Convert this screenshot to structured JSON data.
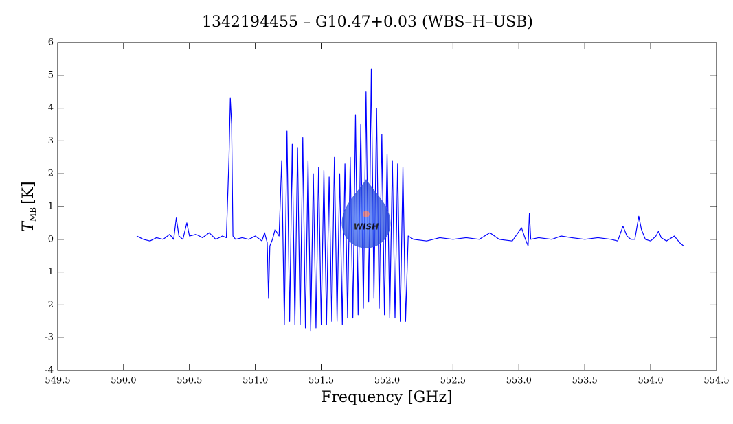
{
  "chart_data": {
    "type": "line",
    "title": "1342194455 – G10.47+0.03 (WBS–H–USB)",
    "x_label": "Frequency [GHz]",
    "y_label": {
      "symbol": "T",
      "subscript": "MB",
      "unit": "[K]"
    },
    "watermark": "WISH",
    "xlim": [
      549.5,
      554.5
    ],
    "xticks": [
      549.5,
      {
        "value": 550,
        "label": "550.0"
      },
      550.5,
      {
        "value": 551,
        "label": "551.0"
      },
      551.5,
      {
        "value": 552,
        "label": "552.0"
      },
      552.5,
      {
        "value": 553,
        "label": "553.0"
      },
      553.5,
      {
        "value": 554,
        "label": "554.0"
      },
      554.5
    ],
    "ylim": [
      -4,
      6
    ],
    "yticks": [
      -4,
      -3,
      -2,
      -1,
      0,
      1,
      2,
      3,
      4,
      5,
      6
    ],
    "series": [
      {
        "color": "#0000ff",
        "x": [
          550.1,
          550.15,
          550.2,
          550.25,
          550.3,
          550.35,
          550.38,
          550.4,
          550.42,
          550.45,
          550.48,
          550.5,
          550.55,
          550.6,
          550.65,
          550.7,
          550.75,
          550.78,
          550.8,
          550.81,
          550.82,
          550.83,
          550.85,
          550.9,
          550.95,
          551.0,
          551.05,
          551.07,
          551.09,
          551.1,
          551.11,
          551.13,
          551.15,
          551.18,
          551.2,
          551.22,
          551.24,
          551.26,
          551.28,
          551.3,
          551.32,
          551.34,
          551.36,
          551.38,
          551.4,
          551.42,
          551.44,
          551.46,
          551.48,
          551.5,
          551.52,
          551.54,
          551.56,
          551.58,
          551.6,
          551.62,
          551.64,
          551.66,
          551.68,
          551.7,
          551.72,
          551.74,
          551.76,
          551.78,
          551.8,
          551.82,
          551.84,
          551.86,
          551.88,
          551.9,
          551.92,
          551.94,
          551.96,
          551.98,
          552.0,
          552.02,
          552.04,
          552.06,
          552.08,
          552.1,
          552.12,
          552.14,
          552.16,
          552.2,
          552.3,
          552.4,
          552.5,
          552.6,
          552.7,
          552.78,
          552.85,
          552.95,
          553.02,
          553.05,
          553.07,
          553.08,
          553.09,
          553.15,
          553.25,
          553.32,
          553.4,
          553.5,
          553.6,
          553.7,
          553.75,
          553.79,
          553.82,
          553.85,
          553.88,
          553.91,
          553.93,
          553.96,
          554.0,
          554.04,
          554.06,
          554.08,
          554.12,
          554.18,
          554.22,
          554.25
        ],
        "values": [
          0.1,
          0.0,
          -0.05,
          0.05,
          0.0,
          0.15,
          0.0,
          0.65,
          0.1,
          0.0,
          0.5,
          0.1,
          0.15,
          0.05,
          0.2,
          0.0,
          0.1,
          0.05,
          2.5,
          4.3,
          3.5,
          0.1,
          0.0,
          0.05,
          0.0,
          0.1,
          -0.05,
          0.2,
          -0.1,
          -1.8,
          -0.2,
          0.0,
          0.3,
          0.1,
          2.4,
          -2.6,
          3.3,
          -2.5,
          2.9,
          -2.6,
          2.8,
          -2.6,
          3.1,
          -2.7,
          2.4,
          -2.8,
          2.0,
          -2.7,
          2.2,
          -2.6,
          2.1,
          -2.6,
          1.9,
          -2.5,
          2.5,
          -2.5,
          2.0,
          -2.6,
          2.3,
          -2.4,
          2.5,
          -2.4,
          3.8,
          -2.3,
          3.5,
          -2.1,
          4.5,
          -1.9,
          5.2,
          -1.8,
          4.0,
          -2.1,
          3.2,
          -2.3,
          2.6,
          -2.4,
          2.4,
          -2.4,
          2.3,
          -2.5,
          2.2,
          -2.5,
          0.1,
          0.0,
          -0.05,
          0.05,
          0.0,
          0.05,
          0.0,
          0.2,
          0.0,
          -0.05,
          0.35,
          0.0,
          -0.2,
          0.8,
          0.0,
          0.05,
          0.0,
          0.1,
          0.05,
          0.0,
          0.05,
          0.0,
          -0.05,
          0.4,
          0.1,
          0.0,
          0.0,
          0.7,
          0.3,
          0.0,
          -0.05,
          0.1,
          0.25,
          0.05,
          -0.05,
          0.1,
          -0.1,
          -0.2
        ]
      }
    ]
  }
}
